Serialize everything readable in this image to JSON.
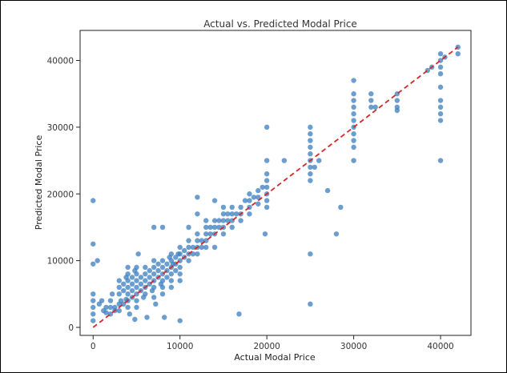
{
  "chart_data": {
    "type": "scatter",
    "title": "Actual vs. Predicted Modal Price",
    "xlabel": "Actual Modal Price",
    "ylabel": "Predicted Modal Price",
    "xlim": [
      -1500,
      43500
    ],
    "ylim": [
      -1200,
      44500
    ],
    "xticks": [
      0,
      10000,
      20000,
      30000,
      40000
    ],
    "yticks": [
      0,
      10000,
      20000,
      30000,
      40000
    ],
    "grid": false,
    "series": [
      {
        "color": "#3a7ebf",
        "points": [
          [
            0,
            1000
          ],
          [
            0,
            2000
          ],
          [
            0,
            3000
          ],
          [
            0,
            4000
          ],
          [
            0,
            5000
          ],
          [
            0,
            19000
          ],
          [
            0,
            12500
          ],
          [
            0,
            9500
          ],
          [
            500,
            10000
          ],
          [
            700,
            3500
          ],
          [
            1000,
            4000
          ],
          [
            1200,
            2500
          ],
          [
            1500,
            3000
          ],
          [
            1500,
            2200
          ],
          [
            2000,
            2000
          ],
          [
            2000,
            3000
          ],
          [
            2000,
            4000
          ],
          [
            2200,
            5000
          ],
          [
            2500,
            3000
          ],
          [
            2500,
            2500
          ],
          [
            3000,
            2500
          ],
          [
            3000,
            3500
          ],
          [
            3000,
            5000
          ],
          [
            3000,
            6000
          ],
          [
            3000,
            7000
          ],
          [
            3200,
            4000
          ],
          [
            3500,
            3500
          ],
          [
            3500,
            5500
          ],
          [
            3500,
            6500
          ],
          [
            3800,
            7500
          ],
          [
            3800,
            4200
          ],
          [
            4000,
            3000
          ],
          [
            4000,
            4000
          ],
          [
            4000,
            5000
          ],
          [
            4000,
            6000
          ],
          [
            4000,
            7000
          ],
          [
            4000,
            8000
          ],
          [
            4000,
            9000
          ],
          [
            4200,
            2000
          ],
          [
            4500,
            4500
          ],
          [
            4500,
            5500
          ],
          [
            4500,
            6500
          ],
          [
            4500,
            7500
          ],
          [
            4800,
            8500
          ],
          [
            4800,
            1200
          ],
          [
            5000,
            3000
          ],
          [
            5000,
            4000
          ],
          [
            5000,
            5000
          ],
          [
            5000,
            6000
          ],
          [
            5000,
            7000
          ],
          [
            5000,
            8000
          ],
          [
            5000,
            9000
          ],
          [
            5200,
            11000
          ],
          [
            5500,
            5500
          ],
          [
            5500,
            6500
          ],
          [
            5500,
            7500
          ],
          [
            5800,
            4500
          ],
          [
            6000,
            5000
          ],
          [
            6000,
            6000
          ],
          [
            6000,
            7000
          ],
          [
            6000,
            8000
          ],
          [
            6000,
            9000
          ],
          [
            6200,
            1500
          ],
          [
            6500,
            6500
          ],
          [
            6500,
            7500
          ],
          [
            6500,
            8500
          ],
          [
            6800,
            5500
          ],
          [
            7000,
            4500
          ],
          [
            7000,
            6000
          ],
          [
            7000,
            7000
          ],
          [
            7000,
            8000
          ],
          [
            7000,
            9000
          ],
          [
            7000,
            10000
          ],
          [
            7000,
            15000
          ],
          [
            7200,
            3500
          ],
          [
            7500,
            7500
          ],
          [
            7500,
            8500
          ],
          [
            7500,
            9500
          ],
          [
            7800,
            6500
          ],
          [
            8000,
            5000
          ],
          [
            8000,
            6000
          ],
          [
            8000,
            7000
          ],
          [
            8000,
            8000
          ],
          [
            8000,
            9000
          ],
          [
            8000,
            10000
          ],
          [
            8000,
            15000
          ],
          [
            8200,
            1500
          ],
          [
            8500,
            8500
          ],
          [
            8500,
            9500
          ],
          [
            8500,
            7500
          ],
          [
            8800,
            10500
          ],
          [
            9000,
            6000
          ],
          [
            9000,
            7000
          ],
          [
            9000,
            8000
          ],
          [
            9000,
            9000
          ],
          [
            9000,
            10000
          ],
          [
            9000,
            11000
          ],
          [
            9200,
            9500
          ],
          [
            9500,
            9500
          ],
          [
            9500,
            10500
          ],
          [
            9500,
            8500
          ],
          [
            9800,
            11000
          ],
          [
            10000,
            7000
          ],
          [
            10000,
            8000
          ],
          [
            10000,
            9000
          ],
          [
            10000,
            10000
          ],
          [
            10000,
            11000
          ],
          [
            10000,
            12000
          ],
          [
            10000,
            1000
          ],
          [
            10500,
            10500
          ],
          [
            10500,
            11500
          ],
          [
            11000,
            10000
          ],
          [
            11000,
            11000
          ],
          [
            11000,
            12000
          ],
          [
            11000,
            13000
          ],
          [
            11000,
            15000
          ],
          [
            11500,
            12000
          ],
          [
            11500,
            11000
          ],
          [
            12000,
            11000
          ],
          [
            12000,
            12000
          ],
          [
            12000,
            13000
          ],
          [
            12000,
            14000
          ],
          [
            12000,
            17000
          ],
          [
            12000,
            19500
          ],
          [
            12500,
            13000
          ],
          [
            12500,
            12000
          ],
          [
            13000,
            12000
          ],
          [
            13000,
            13000
          ],
          [
            13000,
            14000
          ],
          [
            13000,
            15000
          ],
          [
            13000,
            16000
          ],
          [
            13500,
            14000
          ],
          [
            13500,
            15000
          ],
          [
            14000,
            14000
          ],
          [
            14000,
            15000
          ],
          [
            14000,
            16000
          ],
          [
            14000,
            19000
          ],
          [
            14000,
            12000
          ],
          [
            14500,
            15000
          ],
          [
            14500,
            16000
          ],
          [
            15000,
            14000
          ],
          [
            15000,
            15000
          ],
          [
            15000,
            16000
          ],
          [
            15000,
            17000
          ],
          [
            15000,
            18000
          ],
          [
            15500,
            16000
          ],
          [
            15500,
            17000
          ],
          [
            16000,
            15000
          ],
          [
            16000,
            16000
          ],
          [
            16000,
            17000
          ],
          [
            16000,
            18000
          ],
          [
            16500,
            17000
          ],
          [
            16800,
            2000
          ],
          [
            17000,
            16000
          ],
          [
            17000,
            17000
          ],
          [
            17000,
            18000
          ],
          [
            17500,
            19000
          ],
          [
            18000,
            17000
          ],
          [
            18000,
            18000
          ],
          [
            18000,
            19000
          ],
          [
            18000,
            20000
          ],
          [
            18500,
            19500
          ],
          [
            19000,
            18500
          ],
          [
            19000,
            19500
          ],
          [
            19000,
            20500
          ],
          [
            19500,
            21000
          ],
          [
            20000,
            18000
          ],
          [
            20000,
            19000
          ],
          [
            20000,
            20000
          ],
          [
            20000,
            21000
          ],
          [
            20000,
            22000
          ],
          [
            20000,
            23000
          ],
          [
            20000,
            25000
          ],
          [
            20000,
            30000
          ],
          [
            19800,
            14000
          ],
          [
            22000,
            25000
          ],
          [
            25000,
            22000
          ],
          [
            25000,
            23000
          ],
          [
            25000,
            24000
          ],
          [
            25000,
            25000
          ],
          [
            25000,
            26000
          ],
          [
            25000,
            27000
          ],
          [
            25000,
            28000
          ],
          [
            25000,
            29000
          ],
          [
            25000,
            30000
          ],
          [
            25000,
            11000
          ],
          [
            25000,
            3500
          ],
          [
            25500,
            24000
          ],
          [
            26000,
            25000
          ],
          [
            27000,
            20500
          ],
          [
            28000,
            14000
          ],
          [
            28500,
            18000
          ],
          [
            30000,
            25000
          ],
          [
            30000,
            27000
          ],
          [
            30000,
            28000
          ],
          [
            30000,
            29000
          ],
          [
            30000,
            30000
          ],
          [
            30000,
            31000
          ],
          [
            30000,
            32000
          ],
          [
            30000,
            33000
          ],
          [
            30000,
            34000
          ],
          [
            30000,
            35000
          ],
          [
            30000,
            37000
          ],
          [
            32000,
            33000
          ],
          [
            32000,
            34000
          ],
          [
            32000,
            35000
          ],
          [
            32500,
            33000
          ],
          [
            35000,
            32500
          ],
          [
            35000,
            33000
          ],
          [
            35000,
            34000
          ],
          [
            35000,
            35000
          ],
          [
            38500,
            38500
          ],
          [
            39000,
            39000
          ],
          [
            40000,
            25000
          ],
          [
            40000,
            31000
          ],
          [
            40000,
            32000
          ],
          [
            40000,
            33000
          ],
          [
            40000,
            34000
          ],
          [
            40000,
            36000
          ],
          [
            40000,
            38000
          ],
          [
            40000,
            39000
          ],
          [
            40000,
            40000
          ],
          [
            40000,
            41000
          ],
          [
            40500,
            40500
          ],
          [
            42000,
            41000
          ],
          [
            42000,
            42000
          ]
        ]
      }
    ],
    "reference_line": {
      "from": [
        0,
        0
      ],
      "to": [
        42000,
        42000
      ],
      "color": "#d62728",
      "style": "dashed"
    }
  }
}
